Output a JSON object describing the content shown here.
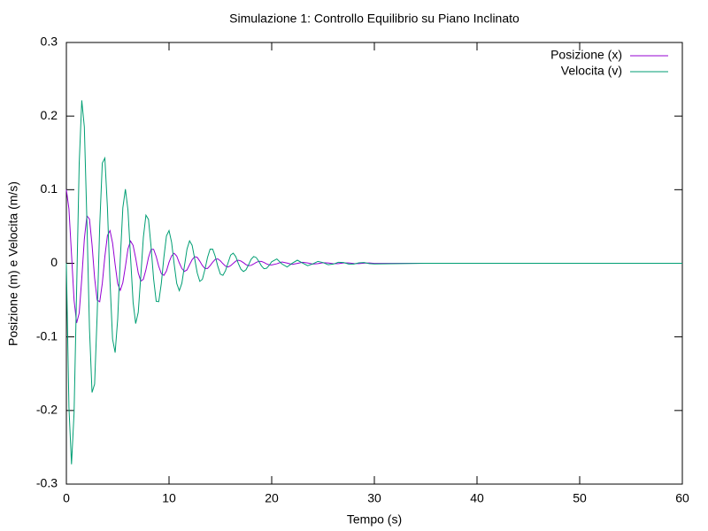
{
  "chart_data": {
    "type": "line",
    "title": "Simulazione 1: Controllo Equilibrio su Piano Inclinato",
    "xlabel": "Tempo (s)",
    "ylabel": "Posizione (m) e Velocita (m/s)",
    "xlim": [
      0,
      60
    ],
    "xticks": [
      0,
      10,
      20,
      30,
      40,
      50,
      60
    ],
    "ylim": [
      -0.3,
      0.3
    ],
    "yticks": [
      -0.3,
      -0.2,
      -0.1,
      0,
      0.1,
      0.2,
      0.3
    ],
    "grid": false,
    "legend": "top-right",
    "x": [
      0,
      0.25,
      0.5,
      0.75,
      1,
      1.25,
      1.5,
      1.75,
      2,
      2.25,
      2.5,
      2.75,
      3,
      3.25,
      3.5,
      3.75,
      4,
      4.25,
      4.5,
      4.75,
      5,
      5.25,
      5.5,
      5.75,
      6,
      6.25,
      6.5,
      6.75,
      7,
      7.25,
      7.5,
      7.75,
      8,
      8.25,
      8.5,
      8.75,
      9,
      9.25,
      9.5,
      9.75,
      10,
      10.25,
      10.5,
      10.75,
      11,
      11.25,
      11.5,
      11.75,
      12,
      12.25,
      12.5,
      12.75,
      13,
      13.25,
      13.5,
      13.75,
      14,
      14.25,
      14.5,
      14.75,
      15,
      15.25,
      15.5,
      15.75,
      16,
      16.25,
      16.5,
      16.75,
      17,
      17.25,
      17.5,
      17.75,
      18,
      18.25,
      18.5,
      18.75,
      19,
      19.25,
      19.5,
      19.75,
      20,
      20.5,
      21,
      21.5,
      22,
      22.5,
      23,
      23.5,
      24,
      24.5,
      25,
      25.5,
      26,
      26.5,
      27,
      27.5,
      28,
      28.5,
      29,
      29.5,
      30,
      35,
      40,
      45,
      50,
      55,
      60
    ],
    "series": [
      {
        "name": "Posizione (x)",
        "color": "#9400d3",
        "values": [
          0.1,
          0.0739,
          0.0122,
          -0.0502,
          -0.0811,
          -0.0676,
          -0.0205,
          0.0328,
          0.0645,
          0.0601,
          0.0252,
          -0.0199,
          -0.05,
          -0.0522,
          -0.0273,
          0.0093,
          0.0379,
          0.0444,
          0.0275,
          -0.0017,
          -0.0278,
          -0.0369,
          -0.0263,
          -0.0044,
          0.0196,
          0.0302,
          0.0243,
          0.0071,
          -0.0131,
          -0.0242,
          -0.0217,
          -0.0087,
          0.008,
          0.019,
          0.019,
          0.0092,
          -0.0042,
          -0.0141,
          -0.0164,
          -0.0104,
          0.0014,
          0.0101,
          0.0136,
          0.0098,
          0.0006,
          -0.0071,
          -0.0111,
          -0.009,
          -0.002,
          0.0049,
          0.009,
          0.008,
          0.0028,
          -0.0031,
          -0.007,
          -0.007,
          -0.0032,
          0.0014,
          0.0053,
          0.006,
          0.0033,
          -0.0005,
          -0.0039,
          -0.005,
          -0.0033,
          -0.0001,
          0.0029,
          0.0042,
          0.0031,
          0.0008,
          -0.0019,
          -0.0033,
          -0.0028,
          -0.0009,
          0.0013,
          0.0026,
          0.0025,
          0.0011,
          -0.0008,
          -0.0021,
          -0.0022,
          -0.0007,
          0.0018,
          0.0003,
          -0.0015,
          -0.0001,
          0.0013,
          0.0004,
          -0.001,
          -0.0005,
          0.0008,
          0.0005,
          -0.0006,
          -0.0005,
          0.0004,
          0.0005,
          -0.0003,
          -0.0004,
          0.0002,
          0.0004,
          -0.0001,
          0,
          0,
          0,
          0,
          0,
          0
        ]
      },
      {
        "name": "Velocita (v)",
        "color": "#009e73",
        "values": [
          0,
          -0.1956,
          -0.273,
          -0.2031,
          -0.0351,
          0.1357,
          0.2213,
          0.1854,
          0.0575,
          -0.0883,
          -0.1756,
          -0.1641,
          -0.0701,
          0.0519,
          0.1362,
          0.1429,
          0.0755,
          -0.0248,
          -0.1029,
          -0.1214,
          -0.0757,
          0.0049,
          0.0754,
          0.1007,
          0.0723,
          0.0089,
          -0.053,
          -0.0819,
          -0.0666,
          -0.0173,
          0.0353,
          0.0654,
          0.0596,
          0.0224,
          -0.0215,
          -0.0516,
          -0.0521,
          -0.0271,
          0.0083,
          0.0373,
          0.0445,
          0.0285,
          -0.0011,
          -0.0274,
          -0.0372,
          -0.027,
          -0.0038,
          0.0193,
          0.0305,
          0.0244,
          0.006,
          -0.0132,
          -0.0246,
          -0.0218,
          -0.0082,
          0.008,
          0.0193,
          0.0193,
          0.0095,
          -0.004,
          -0.0148,
          -0.0164,
          -0.01,
          0.0006,
          0.0111,
          0.0137,
          0.0091,
          -0.0002,
          -0.008,
          -0.0112,
          -0.0087,
          -0.002,
          0.0055,
          0.0092,
          0.0077,
          0.0026,
          -0.0035,
          -0.0073,
          -0.0068,
          -0.0029,
          0.0021,
          0.0059,
          -0.0009,
          -0.005,
          0.0001,
          0.0042,
          0.0004,
          -0.0033,
          -0.0008,
          0.0026,
          0.001,
          -0.002,
          -0.0011,
          0.0014,
          0.0011,
          -0.001,
          -0.0011,
          0.0006,
          0.001,
          -0.0004,
          -0.0009,
          0,
          0,
          0,
          0,
          0,
          0
        ]
      }
    ]
  }
}
